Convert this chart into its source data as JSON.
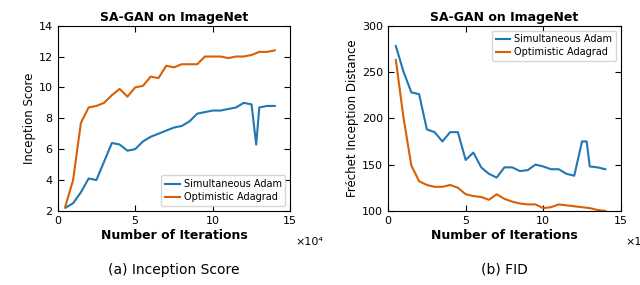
{
  "title": "SA-GAN on ImageNet",
  "subplot_a_label": "(a) Inception Score",
  "subplot_b_label": "(b) FID",
  "xlabel": "Number of Iterations",
  "ylabel_a": "Inception Score",
  "ylabel_b": "Fréchet Inception Distance",
  "xlim": [
    0,
    150000
  ],
  "ylim_a": [
    2,
    14
  ],
  "ylim_b": [
    100,
    300
  ],
  "xticks": [
    0,
    50000,
    100000,
    150000
  ],
  "xtick_labels": [
    "0",
    "5",
    "10",
    "15"
  ],
  "xscale_label": "×10⁴",
  "yticks_a": [
    2,
    4,
    6,
    8,
    10,
    12,
    14
  ],
  "yticks_b": [
    100,
    150,
    200,
    250,
    300
  ],
  "legend_entries": [
    "Simultaneous Adam",
    "Optimistic Adagrad"
  ],
  "color_adam": "#1f77b4",
  "color_adagrad": "#d95f02",
  "line_width": 1.5,
  "adam_is_x": [
    5000,
    10000,
    15000,
    20000,
    25000,
    30000,
    35000,
    40000,
    45000,
    50000,
    55000,
    60000,
    65000,
    70000,
    75000,
    80000,
    85000,
    90000,
    95000,
    100000,
    105000,
    110000,
    115000,
    120000,
    125000,
    128000,
    130000,
    135000,
    140000
  ],
  "adam_is_y": [
    2.2,
    2.5,
    3.2,
    4.1,
    4.0,
    5.2,
    6.4,
    6.3,
    5.9,
    6.0,
    6.5,
    6.8,
    7.0,
    7.2,
    7.4,
    7.5,
    7.8,
    8.3,
    8.4,
    8.5,
    8.5,
    8.6,
    8.7,
    9.0,
    8.9,
    6.3,
    8.7,
    8.8,
    8.8
  ],
  "adagrad_is_x": [
    5000,
    10000,
    15000,
    20000,
    25000,
    30000,
    35000,
    40000,
    45000,
    50000,
    55000,
    60000,
    65000,
    70000,
    75000,
    80000,
    85000,
    90000,
    95000,
    100000,
    105000,
    110000,
    115000,
    120000,
    125000,
    130000,
    135000,
    140000
  ],
  "adagrad_is_y": [
    2.3,
    4.0,
    7.7,
    8.7,
    8.8,
    9.0,
    9.5,
    9.9,
    9.4,
    10.0,
    10.1,
    10.7,
    10.6,
    11.4,
    11.3,
    11.5,
    11.5,
    11.5,
    12.0,
    12.0,
    12.0,
    11.9,
    12.0,
    12.0,
    12.1,
    12.3,
    12.3,
    12.4
  ],
  "adam_fid_x": [
    5000,
    10000,
    15000,
    20000,
    25000,
    30000,
    35000,
    40000,
    45000,
    50000,
    55000,
    60000,
    65000,
    70000,
    75000,
    80000,
    85000,
    90000,
    95000,
    100000,
    105000,
    110000,
    115000,
    120000,
    125000,
    128000,
    130000,
    135000,
    140000
  ],
  "adam_fid_y": [
    278,
    250,
    228,
    226,
    188,
    185,
    175,
    185,
    185,
    155,
    163,
    147,
    140,
    136,
    147,
    147,
    143,
    144,
    150,
    148,
    145,
    145,
    140,
    138,
    175,
    175,
    148,
    147,
    145
  ],
  "adagrad_fid_x": [
    5000,
    10000,
    15000,
    20000,
    25000,
    30000,
    35000,
    40000,
    45000,
    50000,
    55000,
    60000,
    65000,
    70000,
    75000,
    80000,
    85000,
    90000,
    95000,
    100000,
    105000,
    110000,
    115000,
    120000,
    125000,
    130000,
    135000,
    140000
  ],
  "adagrad_fid_y": [
    263,
    200,
    149,
    132,
    128,
    126,
    126,
    128,
    125,
    118,
    116,
    115,
    112,
    118,
    113,
    110,
    108,
    107,
    107,
    103,
    104,
    107,
    106,
    105,
    104,
    103,
    101,
    100
  ]
}
